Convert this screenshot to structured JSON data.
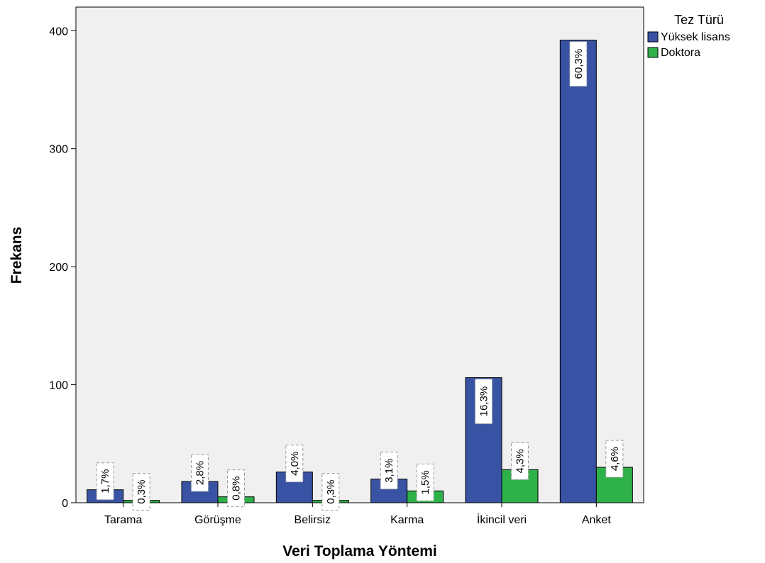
{
  "chart_data": {
    "type": "bar",
    "title": "",
    "xlabel": "Veri Toplama Yöntemi",
    "ylabel": "Frekans",
    "ylim": [
      0,
      420
    ],
    "yticks": [
      "0",
      "100",
      "200",
      "300",
      "400"
    ],
    "grid": false,
    "legend_position": "right",
    "legend_title": "Tez Türü",
    "categories": [
      "Tarama",
      "Görüşme",
      "Belirsiz",
      "Karma",
      "İkincil veri",
      "Anket"
    ],
    "series": [
      {
        "name": "Yüksek lisans",
        "color": "#3953a4",
        "values": [
          11,
          18,
          26,
          20,
          106,
          392
        ],
        "labels": [
          "1,7%",
          "2,8%",
          "4,0%",
          "3,1%",
          "16,3%",
          "60,3%"
        ]
      },
      {
        "name": "Doktora",
        "color": "#2fb14a",
        "values": [
          2,
          5,
          2,
          10,
          28,
          30
        ],
        "labels": [
          "0,3%",
          "0,8%",
          "0,3%",
          "1,5%",
          "4,3%",
          "4,6%"
        ]
      }
    ],
    "plot_background": "#f0f0f0"
  }
}
